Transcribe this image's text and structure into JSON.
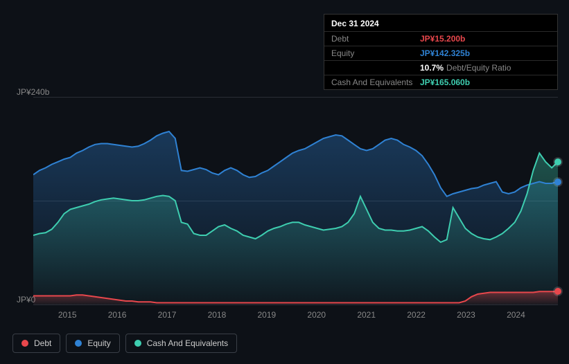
{
  "chart": {
    "type": "area-line",
    "background_color": "#0d1117",
    "grid_color": "#2a2e36",
    "ylabel_top": "JP¥240b",
    "ylabel_bottom": "JP¥0",
    "ylim": [
      0,
      240
    ],
    "years": [
      "2015",
      "2016",
      "2017",
      "2018",
      "2019",
      "2020",
      "2021",
      "2022",
      "2023",
      "2024"
    ],
    "year_positions_pct": [
      6.5,
      16,
      25.5,
      35,
      44.5,
      54,
      63.5,
      73,
      82.5,
      92
    ],
    "series": {
      "debt": {
        "label": "Debt",
        "color": "#e8474c",
        "values": [
          10,
          10,
          10,
          10,
          10,
          10,
          10,
          11,
          11,
          10,
          9,
          8,
          7,
          6,
          5,
          4,
          4,
          3,
          3,
          3,
          2,
          2,
          2,
          2,
          2,
          2,
          2,
          2,
          2,
          2,
          2,
          2,
          2,
          2,
          2,
          2,
          2,
          2,
          2,
          2,
          2,
          2,
          2,
          2,
          2,
          2,
          2,
          2,
          2,
          2,
          2,
          2,
          2,
          2,
          2,
          2,
          2,
          2,
          2,
          2,
          2,
          2,
          2,
          2,
          2,
          2,
          2,
          2,
          2,
          2,
          4,
          9,
          12,
          13,
          14,
          14,
          14,
          14,
          14,
          14,
          14,
          14,
          15,
          15,
          15,
          15
        ],
        "end_dot": true
      },
      "equity": {
        "label": "Equity",
        "color": "#2f82d4",
        "values": [
          150,
          155,
          158,
          162,
          165,
          168,
          170,
          175,
          178,
          182,
          185,
          186,
          186,
          185,
          184,
          183,
          182,
          183,
          186,
          190,
          195,
          198,
          200,
          192,
          155,
          154,
          156,
          158,
          156,
          152,
          150,
          155,
          158,
          155,
          150,
          147,
          148,
          152,
          155,
          160,
          165,
          170,
          175,
          178,
          180,
          184,
          188,
          192,
          194,
          196,
          195,
          190,
          185,
          180,
          178,
          180,
          185,
          190,
          192,
          190,
          185,
          182,
          178,
          172,
          162,
          150,
          135,
          125,
          128,
          130,
          132,
          134,
          135,
          138,
          140,
          142,
          130,
          128,
          130,
          135,
          138,
          140,
          142,
          140,
          140,
          142
        ],
        "end_dot": true
      },
      "cash": {
        "label": "Cash And Equivalents",
        "color": "#3eceb0",
        "values": [
          80,
          82,
          83,
          87,
          95,
          105,
          110,
          112,
          114,
          116,
          119,
          121,
          122,
          123,
          122,
          121,
          120,
          120,
          121,
          123,
          125,
          126,
          125,
          120,
          95,
          93,
          82,
          80,
          80,
          85,
          90,
          92,
          88,
          85,
          80,
          78,
          76,
          80,
          85,
          88,
          90,
          93,
          95,
          95,
          92,
          90,
          88,
          86,
          87,
          88,
          90,
          95,
          105,
          125,
          110,
          95,
          88,
          86,
          86,
          85,
          85,
          86,
          88,
          90,
          85,
          78,
          72,
          75,
          112,
          100,
          88,
          82,
          78,
          76,
          75,
          78,
          82,
          88,
          95,
          108,
          128,
          155,
          175,
          165,
          158,
          165
        ],
        "end_dot": true
      }
    }
  },
  "tooltip": {
    "title": "Dec 31 2024",
    "rows": [
      {
        "label": "Debt",
        "value": "JP¥15.200b",
        "color": "#e8474c"
      },
      {
        "label": "Equity",
        "value": "JP¥142.325b",
        "color": "#2f82d4"
      },
      {
        "label": "",
        "value": "10.7%",
        "extra": "Debt/Equity Ratio",
        "color": "#ffffff"
      },
      {
        "label": "Cash And Equivalents",
        "value": "JP¥165.060b",
        "color": "#3eceb0"
      }
    ]
  },
  "legend": {
    "items": [
      {
        "key": "debt",
        "label": "Debt",
        "color": "#e8474c"
      },
      {
        "key": "equity",
        "label": "Equity",
        "color": "#2f82d4"
      },
      {
        "key": "cash",
        "label": "Cash And Equivalents",
        "color": "#3eceb0"
      }
    ]
  }
}
